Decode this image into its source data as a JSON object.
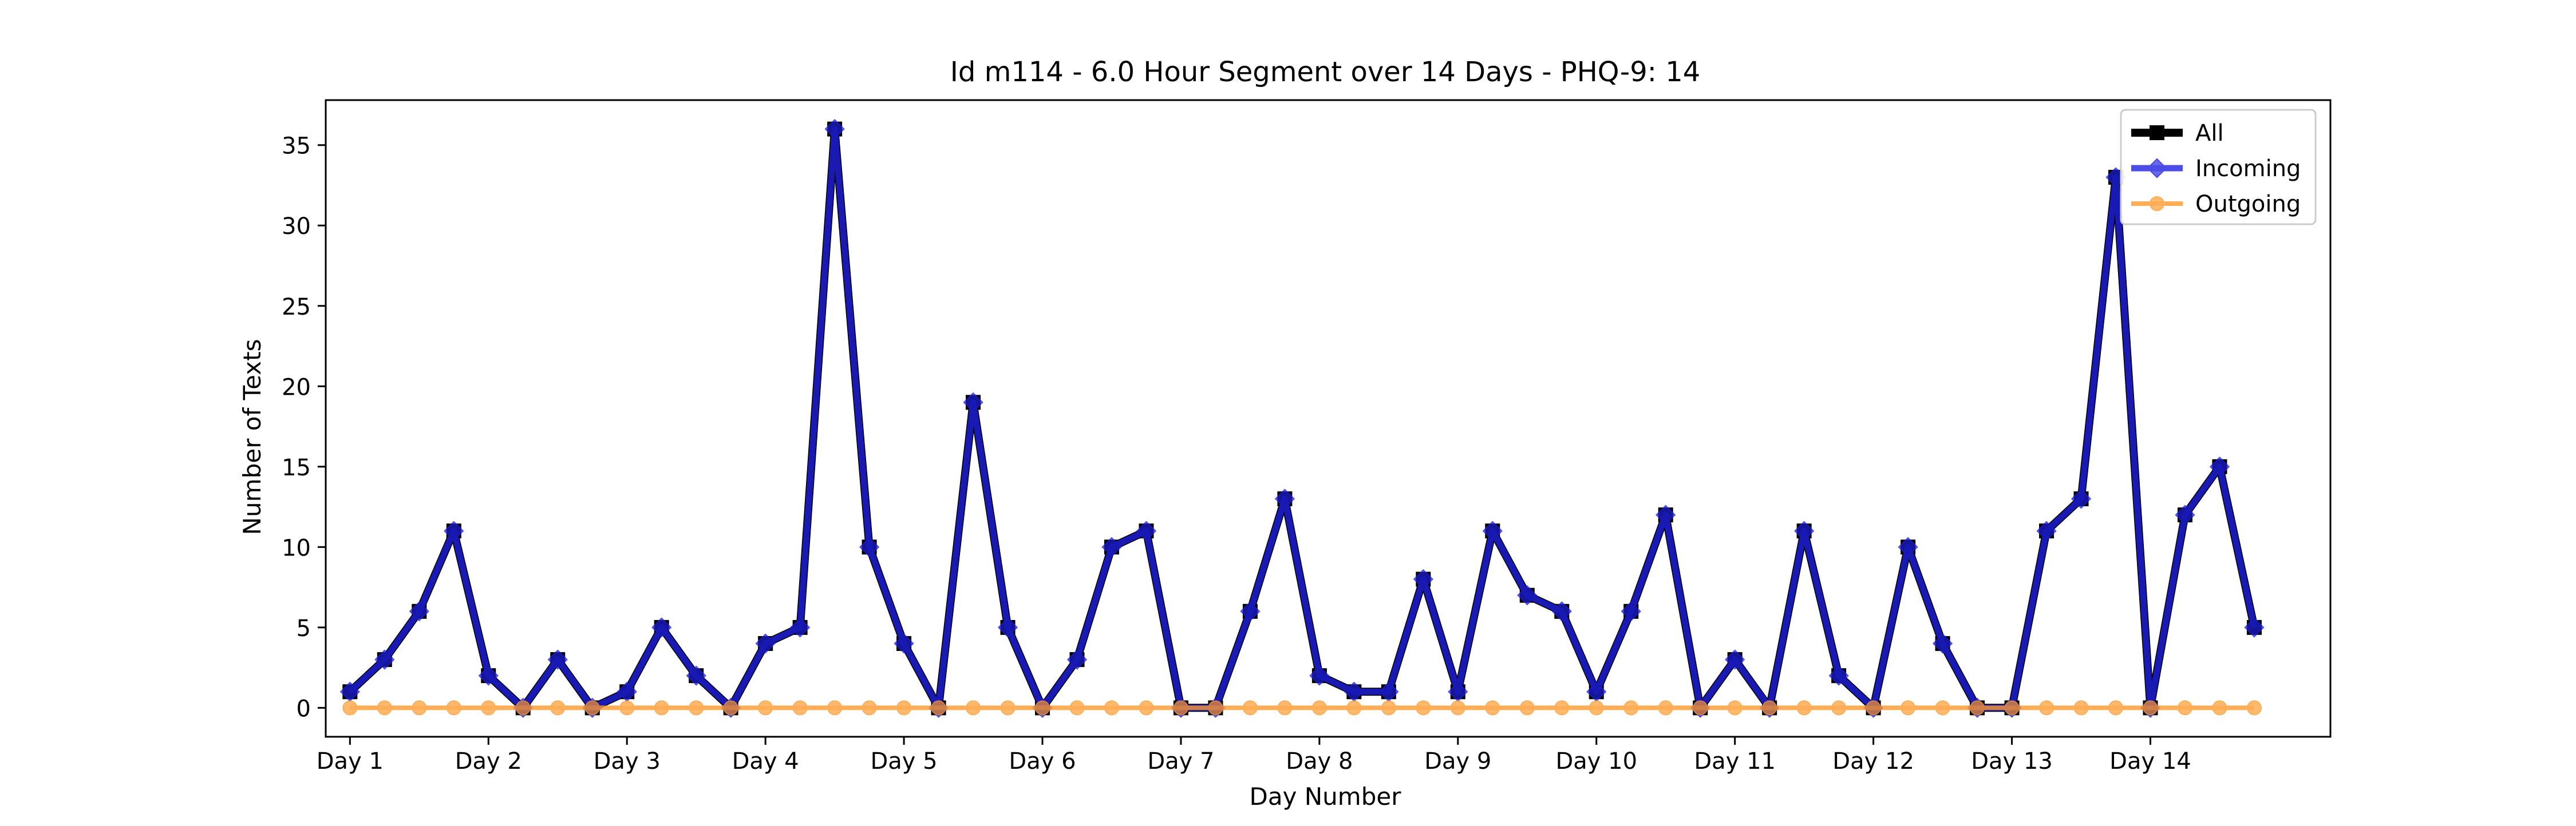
{
  "chart_data": {
    "type": "line",
    "title": "Id m114 - 6.0 Hour Segment over 14 Days - PHQ-9: 14",
    "xlabel": "Day Number",
    "ylabel": "Number of Texts",
    "x_tick_labels": [
      "Day 1",
      "Day 2",
      "Day 3",
      "Day 4",
      "Day 5",
      "Day 6",
      "Day 7",
      "Day 8",
      "Day 9",
      "Day 10",
      "Day 11",
      "Day 12",
      "Day 13",
      "Day 14"
    ],
    "y_ticks": [
      0,
      5,
      10,
      15,
      20,
      25,
      30,
      35
    ],
    "ylim": [
      -1.8,
      37.8
    ],
    "xlim": [
      -0.7,
      57.2
    ],
    "grid": false,
    "legend_position": "top-right",
    "series": [
      {
        "name": "All",
        "color": "#000000",
        "marker": "square",
        "values": [
          1,
          3,
          6,
          11,
          2,
          0,
          3,
          0,
          1,
          5,
          2,
          0,
          4,
          5,
          36,
          10,
          4,
          0,
          19,
          5,
          0,
          3,
          10,
          11,
          0,
          0,
          6,
          13,
          2,
          1,
          1,
          8,
          1,
          11,
          7,
          6,
          1,
          6,
          12,
          0,
          3,
          0,
          11,
          2,
          0,
          10,
          4,
          0,
          0,
          11,
          13,
          33,
          0,
          12,
          15,
          5
        ]
      },
      {
        "name": "Incoming",
        "color": "#2020e0",
        "marker": "diamond",
        "values": [
          1,
          3,
          6,
          11,
          2,
          0,
          3,
          0,
          1,
          5,
          2,
          0,
          4,
          5,
          36,
          10,
          4,
          0,
          19,
          5,
          0,
          3,
          10,
          11,
          0,
          0,
          6,
          13,
          2,
          1,
          1,
          8,
          1,
          11,
          7,
          6,
          1,
          6,
          12,
          0,
          3,
          0,
          11,
          2,
          0,
          10,
          4,
          0,
          0,
          11,
          13,
          33,
          0,
          12,
          15,
          5
        ]
      },
      {
        "name": "Outgoing",
        "color": "#ff9a2e",
        "marker": "circle",
        "values": [
          0,
          0,
          0,
          0,
          0,
          0,
          0,
          0,
          0,
          0,
          0,
          0,
          0,
          0,
          0,
          0,
          0,
          0,
          0,
          0,
          0,
          0,
          0,
          0,
          0,
          0,
          0,
          0,
          0,
          0,
          0,
          0,
          0,
          0,
          0,
          0,
          0,
          0,
          0,
          0,
          0,
          0,
          0,
          0,
          0,
          0,
          0,
          0,
          0,
          0,
          0,
          0,
          0,
          0,
          0,
          0
        ]
      }
    ]
  }
}
